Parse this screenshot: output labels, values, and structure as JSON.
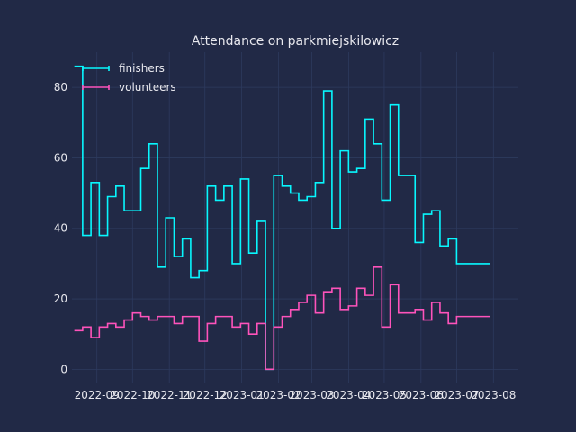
{
  "chart_data": {
    "type": "line",
    "step": "post",
    "title": "Attendance on parkmiejskilowicz",
    "xlabel": "",
    "ylabel": "",
    "x_is_date": true,
    "xlim": [
      "2022-08-11",
      "2023-08-22"
    ],
    "ylim": [
      -4,
      90
    ],
    "yticks": [
      0,
      20,
      40,
      60,
      80
    ],
    "xticks": [
      {
        "date": "2022-09-01",
        "label": "2022-09"
      },
      {
        "date": "2022-10-01",
        "label": "2022-10"
      },
      {
        "date": "2022-11-01",
        "label": "2022-11"
      },
      {
        "date": "2022-12-01",
        "label": "2022-12"
      },
      {
        "date": "2023-01-01",
        "label": "2023-01"
      },
      {
        "date": "2023-02-01",
        "label": "2023-02"
      },
      {
        "date": "2023-03-01",
        "label": "2023-03"
      },
      {
        "date": "2023-04-01",
        "label": "2023-04"
      },
      {
        "date": "2023-05-01",
        "label": "2023-05"
      },
      {
        "date": "2023-06-01",
        "label": "2023-06"
      },
      {
        "date": "2023-07-01",
        "label": "2023-07"
      },
      {
        "date": "2023-08-01",
        "label": "2023-08"
      }
    ],
    "grid": true,
    "legend_position": "top-left",
    "x": [
      "2022-08-13",
      "2022-08-20",
      "2022-08-27",
      "2022-09-03",
      "2022-09-10",
      "2022-09-17",
      "2022-09-24",
      "2022-10-01",
      "2022-10-08",
      "2022-10-15",
      "2022-10-22",
      "2022-10-29",
      "2022-11-05",
      "2022-11-12",
      "2022-11-19",
      "2022-11-26",
      "2022-12-03",
      "2022-12-10",
      "2022-12-17",
      "2022-12-24",
      "2022-12-31",
      "2023-01-07",
      "2023-01-14",
      "2023-01-21",
      "2023-01-28",
      "2023-02-04",
      "2023-02-11",
      "2023-02-18",
      "2023-02-25",
      "2023-03-04",
      "2023-03-11",
      "2023-03-18",
      "2023-03-25",
      "2023-04-01",
      "2023-04-08",
      "2023-04-15",
      "2023-04-22",
      "2023-04-29",
      "2023-05-06",
      "2023-05-13",
      "2023-05-20",
      "2023-05-27",
      "2023-06-03",
      "2023-06-10",
      "2023-06-17",
      "2023-06-24",
      "2023-07-01",
      "2023-07-08",
      "2023-07-15",
      "2023-07-22",
      "2023-07-29"
    ],
    "series": [
      {
        "name": "finishers",
        "color": "#08f7fe",
        "values": [
          86,
          38,
          53,
          38,
          49,
          52,
          45,
          45,
          57,
          64,
          29,
          43,
          32,
          37,
          26,
          28,
          52,
          48,
          52,
          30,
          54,
          33,
          42,
          0,
          55,
          52,
          50,
          48,
          49,
          53,
          79,
          40,
          62,
          56,
          57,
          71,
          64,
          48,
          75,
          55,
          55,
          36,
          44,
          45,
          35,
          37,
          30,
          30,
          30,
          30,
          30
        ]
      },
      {
        "name": "volunteers",
        "color": "#fe53bb",
        "values": [
          11,
          12,
          9,
          12,
          13,
          12,
          14,
          16,
          15,
          14,
          15,
          15,
          13,
          15,
          15,
          8,
          13,
          15,
          15,
          12,
          13,
          10,
          13,
          0,
          12,
          15,
          17,
          19,
          21,
          16,
          22,
          23,
          17,
          18,
          23,
          21,
          29,
          12,
          24,
          16,
          16,
          17,
          14,
          19,
          16,
          13,
          15,
          15,
          15,
          15,
          15
        ]
      }
    ]
  }
}
